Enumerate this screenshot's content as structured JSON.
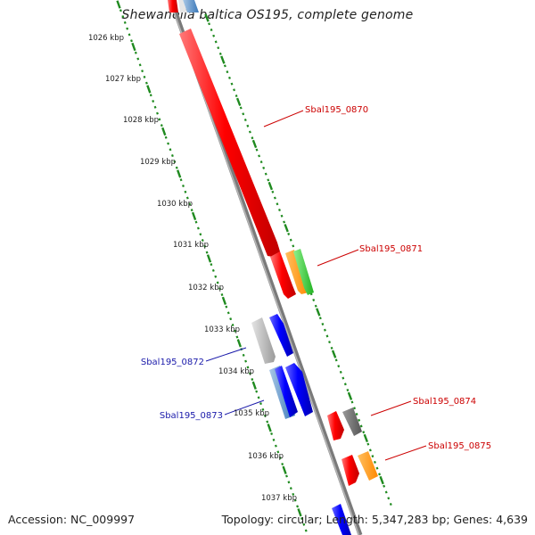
{
  "title": "Shewanella baltica OS195, complete genome",
  "accession": "Accession: NC_009997",
  "summary": "Topology: circular; Length: 5,347,283 bp; Genes: 4,639",
  "colors": {
    "backbone": "#8a8a8a",
    "ticks": "#1f8a1f",
    "label_red": "#cc0000",
    "label_blue": "#1a1aaa"
  },
  "kbp_labels": [
    "1026 kbp",
    "1027 kbp",
    "1028 kbp",
    "1029 kbp",
    "1030 kbp",
    "1031 kbp",
    "1032 kbp",
    "1033 kbp",
    "1034 kbp",
    "1035 kbp",
    "1036 kbp",
    "1037 kbp"
  ],
  "gene_labels": [
    {
      "text": "Sbal195_0870",
      "color": "red"
    },
    {
      "text": "Sbal195_0871",
      "color": "red"
    },
    {
      "text": "Sbal195_0872",
      "color": "blue"
    },
    {
      "text": "Sbal195_0873",
      "color": "blue"
    },
    {
      "text": "Sbal195_0874",
      "color": "red"
    },
    {
      "text": "Sbal195_0875",
      "color": "red"
    }
  ]
}
